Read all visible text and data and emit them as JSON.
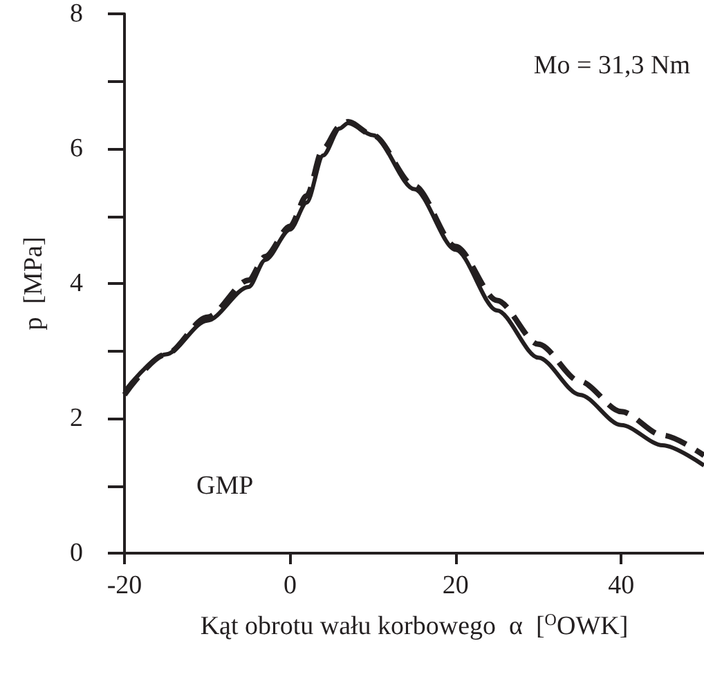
{
  "chart_data": {
    "type": "line",
    "xlabel": "Kąt obrotu wału korbowego  α  [$^{O}$OWK]",
    "ylabel": "p  [MPa]",
    "annotations": [
      "Mo = 31,3 Nm",
      "GMP"
    ],
    "xlim": [
      -20,
      50
    ],
    "xticks": [
      -20,
      0,
      20,
      40
    ],
    "ylim": [
      0,
      8
    ],
    "yticks": [
      0,
      {
        "value": 1,
        "label": null
      },
      2,
      {
        "value": 3,
        "label": null
      },
      4,
      {
        "value": 5,
        "label": null
      },
      6,
      {
        "value": 7,
        "label": null
      },
      8
    ],
    "grid": false,
    "marker": "none",
    "series": [
      {
        "color": "#231f20",
        "line_style": "solid",
        "x": [
          -20,
          -15,
          -10,
          -5,
          -3,
          0,
          2,
          4,
          6,
          7,
          10,
          15,
          20,
          25,
          30,
          35,
          40,
          45,
          50
        ],
        "values": [
          2.4,
          2.95,
          3.45,
          3.95,
          4.35,
          4.8,
          5.2,
          5.9,
          6.3,
          6.38,
          6.2,
          5.4,
          4.5,
          3.6,
          2.9,
          2.35,
          1.9,
          1.6,
          1.3
        ]
      },
      {
        "color": "#231f20",
        "line_style": "dashed",
        "x": [
          -20,
          -15,
          -10,
          -5,
          -3,
          0,
          2,
          4,
          6,
          7,
          10,
          15,
          20,
          25,
          30,
          35,
          40,
          45,
          50
        ],
        "values": [
          2.35,
          2.95,
          3.5,
          4.05,
          4.4,
          4.85,
          5.3,
          6.0,
          6.33,
          6.4,
          6.2,
          5.45,
          4.55,
          3.75,
          3.1,
          2.55,
          2.1,
          1.75,
          1.45
        ]
      }
    ]
  }
}
